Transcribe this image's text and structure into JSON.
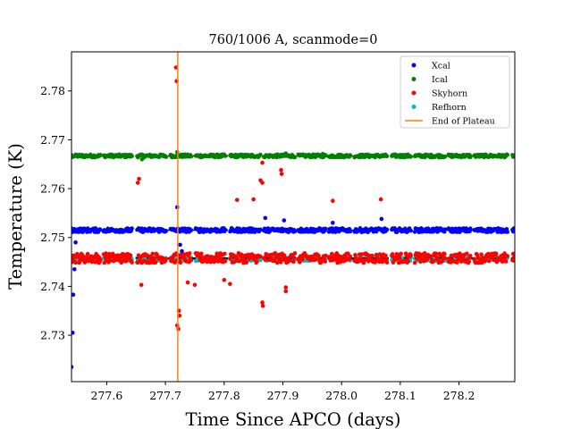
{
  "chart_data": {
    "type": "scatter",
    "title": "760/1006 A, scanmode=0",
    "xlabel": "Time Since APCO (days)",
    "ylabel": "Temperature (K)",
    "xlim": [
      277.54,
      278.295
    ],
    "ylim": [
      2.7205,
      2.788
    ],
    "xticks": [
      "277.6",
      "277.7",
      "277.8",
      "277.9",
      "278.0",
      "278.1",
      "278.2"
    ],
    "yticks": [
      "2.73",
      "2.74",
      "2.75",
      "2.76",
      "2.77",
      "2.78"
    ],
    "legend_position": "top-right",
    "colors": {
      "Xcal": "#0000ff",
      "Ical": "#008000",
      "Skyhorn": "#ff0000",
      "Refhorn": "#00bfbf",
      "End of Plateau": "#ff7f0e"
    },
    "series": [
      {
        "name": "Xcal",
        "baseline": 2.7515,
        "spread": 0.0004,
        "points": [
          [
            277.54,
            2.7235
          ],
          [
            277.542,
            2.7305
          ],
          [
            277.543,
            2.7383
          ],
          [
            277.545,
            2.7435
          ],
          [
            277.547,
            2.749
          ],
          [
            277.72,
            2.7562
          ],
          [
            277.725,
            2.7485
          ],
          [
            277.728,
            2.7472
          ],
          [
            277.87,
            2.754
          ],
          [
            277.902,
            2.7535
          ],
          [
            277.985,
            2.753
          ],
          [
            278.068,
            2.7538
          ]
        ]
      },
      {
        "name": "Ical",
        "baseline": 2.7667,
        "spread": 0.0003,
        "points": [
          [
            277.66,
            2.766
          ],
          [
            277.72,
            2.7675
          ],
          [
            277.905,
            2.7672
          ],
          [
            277.968,
            2.7671
          ]
        ]
      },
      {
        "name": "Skyhorn",
        "baseline": 2.7458,
        "spread": 0.0009,
        "points": [
          [
            277.718,
            2.7848
          ],
          [
            277.719,
            2.782
          ],
          [
            277.655,
            2.762
          ],
          [
            277.653,
            2.7612
          ],
          [
            277.865,
            2.7653
          ],
          [
            277.865,
            2.7612
          ],
          [
            277.862,
            2.7617
          ],
          [
            277.897,
            2.7638
          ],
          [
            277.898,
            2.763
          ],
          [
            277.822,
            2.7577
          ],
          [
            277.85,
            2.7578
          ],
          [
            277.985,
            2.7575
          ],
          [
            278.067,
            2.7578
          ],
          [
            277.659,
            2.7403
          ],
          [
            277.723,
            2.735
          ],
          [
            277.724,
            2.734
          ],
          [
            277.72,
            2.732
          ],
          [
            277.722,
            2.7313
          ],
          [
            277.865,
            2.7367
          ],
          [
            277.866,
            2.736
          ],
          [
            277.905,
            2.739
          ],
          [
            277.905,
            2.7398
          ],
          [
            277.75,
            2.7403
          ],
          [
            277.81,
            2.7405
          ],
          [
            277.738,
            2.7408
          ],
          [
            277.8,
            2.7413
          ]
        ]
      },
      {
        "name": "Refhorn",
        "baseline": 2.7456,
        "spread": 0.0004,
        "points": []
      }
    ],
    "vertical_lines": [
      {
        "name": "End of Plateau",
        "x": 277.721
      }
    ]
  }
}
